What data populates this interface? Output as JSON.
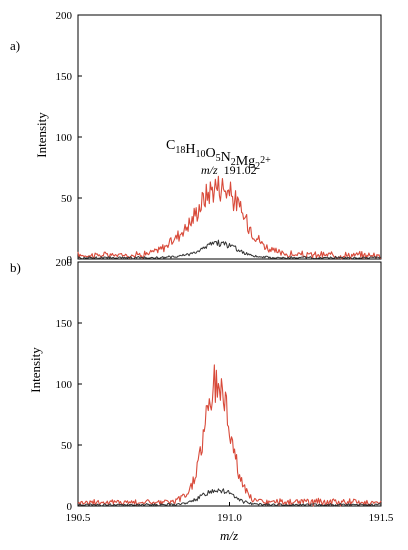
{
  "chart_data": [
    {
      "type": "line",
      "panel_label": "a)",
      "ylabel": "Intensity",
      "ylim": [
        0,
        200
      ],
      "yticks": [
        0,
        50,
        100,
        150,
        200
      ],
      "xlim": [
        190.5,
        191.5
      ],
      "formula": {
        "main": "C",
        "parts": [
          {
            "text": "C",
            "sub": "18"
          },
          {
            "text": "H",
            "sub": "10"
          },
          {
            "text": "O",
            "sub": "5"
          },
          {
            "text": "N",
            "sub": "2"
          },
          {
            "text": "Mg",
            "sub": "2"
          }
        ],
        "charge": "2+"
      },
      "annotation": {
        "prefix": "m/z",
        "value": "191.02"
      },
      "series": [
        {
          "color": "#d84a3a",
          "peak_x": 190.965,
          "peak_y": 57,
          "width": 0.16,
          "base": 3,
          "shoulder": 0.75
        },
        {
          "color": "#333333",
          "peak_x": 190.965,
          "peak_y": 12,
          "width": 0.12,
          "base": 1,
          "shoulder": 0.6
        }
      ]
    },
    {
      "type": "line",
      "panel_label": "b)",
      "ylabel": "Intensity",
      "xlabel": "m/z",
      "ylim": [
        0,
        200
      ],
      "yticks": [
        0,
        50,
        100,
        150,
        200
      ],
      "xlim": [
        190.5,
        191.5
      ],
      "xticks": [
        190.5,
        191.0,
        191.5
      ],
      "xtick_labels": [
        "190.5",
        "191.0",
        "191.5"
      ],
      "series": [
        {
          "color": "#d84a3a",
          "peak_x": 190.96,
          "peak_y": 97,
          "width": 0.09,
          "base": 3,
          "shoulder": 0.45
        },
        {
          "color": "#333333",
          "peak_x": 190.96,
          "peak_y": 13,
          "width": 0.1,
          "base": 1,
          "shoulder": 0.5
        }
      ]
    }
  ]
}
